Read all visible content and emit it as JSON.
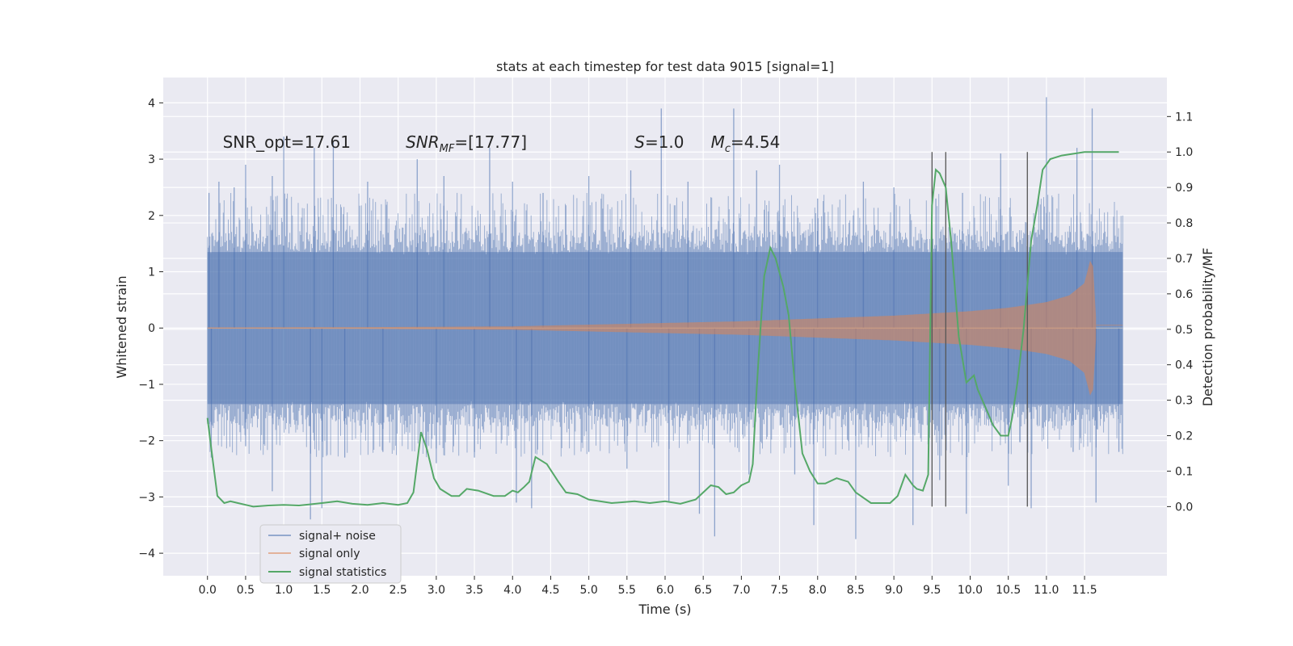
{
  "chart_data": {
    "type": "line",
    "title": "stats at each timestep for test data 9015 [signal=1]",
    "xlabel": "Time (s)",
    "ylabel_left": "Whitened strain",
    "ylabel_right": "Detection probability/MF",
    "xlim": [
      -0.58,
      12.58
    ],
    "ylim_left": [
      -4.4,
      4.45
    ],
    "ylim_right": [
      -0.195,
      1.21
    ],
    "x_ticks": [
      "0.0",
      "0.5",
      "1.0",
      "1.5",
      "2.0",
      "2.5",
      "3.0",
      "3.5",
      "4.0",
      "4.5",
      "5.0",
      "5.5",
      "6.0",
      "6.5",
      "7.0",
      "7.5",
      "8.0",
      "8.5",
      "9.0",
      "9.5",
      "10.0",
      "10.5",
      "11.0",
      "11.5"
    ],
    "y_ticks_left": [
      "4",
      "3",
      "2",
      "1",
      "0",
      "−1",
      "−2",
      "−3",
      "−4"
    ],
    "y_ticks_right": [
      "1.1",
      "1.0",
      "0.9",
      "0.8",
      "0.7",
      "0.6",
      "0.5",
      "0.4",
      "0.3",
      "0.2",
      "0.1",
      "0.0"
    ],
    "annotations": [
      {
        "text": "SNR_opt=17.61",
        "x": 0.2,
        "y": 3.3
      },
      {
        "text": "SNR",
        "sub": "MF",
        "rest": "=[17.77]",
        "x": 2.6,
        "y": 3.3
      },
      {
        "text": "S",
        "rest": "=1.0",
        "x": 5.6,
        "y": 3.3
      },
      {
        "text": "M",
        "sub": "c",
        "rest": "=4.54",
        "x": 6.6,
        "y": 3.3
      }
    ],
    "vlines": [
      9.5,
      9.68,
      10.75
    ],
    "vline_range": [
      0.0,
      1.0
    ],
    "series": [
      {
        "name": "signal+ noise",
        "color": "#4c72b0",
        "kind": "noise",
        "x_range": [
          0.0,
          12.0
        ],
        "band": 1.35,
        "peaks": [
          [
            0.02,
            2.4
          ],
          [
            0.15,
            2.6
          ],
          [
            0.35,
            2.5
          ],
          [
            0.5,
            2.9
          ],
          [
            0.85,
            2.7
          ],
          [
            1.0,
            3.4
          ],
          [
            1.4,
            3.2
          ],
          [
            1.65,
            3.3
          ],
          [
            2.1,
            2.6
          ],
          [
            2.75,
            3.0
          ],
          [
            3.1,
            2.7
          ],
          [
            3.7,
            3.2
          ],
          [
            4.0,
            2.6
          ],
          [
            4.4,
            2.4
          ],
          [
            5.0,
            2.7
          ],
          [
            5.55,
            2.8
          ],
          [
            5.95,
            3.9
          ],
          [
            6.3,
            2.6
          ],
          [
            6.9,
            3.9
          ],
          [
            7.2,
            2.8
          ],
          [
            7.5,
            2.9
          ],
          [
            8.0,
            2.3
          ],
          [
            8.6,
            2.6
          ],
          [
            9.0,
            2.5
          ],
          [
            9.55,
            2.3
          ],
          [
            9.9,
            2.4
          ],
          [
            10.4,
            3.1
          ],
          [
            11.0,
            4.1
          ],
          [
            11.4,
            3.2
          ],
          [
            11.6,
            3.9
          ]
        ],
        "troughs": [
          [
            0.05,
            -2.3
          ],
          [
            0.5,
            -2.1
          ],
          [
            0.85,
            -2.9
          ],
          [
            1.35,
            -3.4
          ],
          [
            1.5,
            -3.2
          ],
          [
            1.8,
            -2.3
          ],
          [
            2.3,
            -2.2
          ],
          [
            3.0,
            -2.4
          ],
          [
            3.5,
            -2.3
          ],
          [
            4.05,
            -3.1
          ],
          [
            4.25,
            -3.2
          ],
          [
            5.0,
            -2.2
          ],
          [
            5.5,
            -2.5
          ],
          [
            6.05,
            -3.1
          ],
          [
            6.45,
            -3.3
          ],
          [
            6.65,
            -3.7
          ],
          [
            7.1,
            -2.6
          ],
          [
            7.7,
            -2.6
          ],
          [
            7.95,
            -3.5
          ],
          [
            8.5,
            -3.75
          ],
          [
            9.25,
            -3.5
          ],
          [
            9.6,
            -2.7
          ],
          [
            9.95,
            -3.3
          ],
          [
            10.5,
            -2.8
          ],
          [
            10.8,
            -3.2
          ],
          [
            11.35,
            -2.2
          ],
          [
            11.65,
            -3.1
          ],
          [
            11.95,
            -2.2
          ]
        ]
      },
      {
        "name": "signal only",
        "color": "#dd8452",
        "kind": "chirp",
        "x_range": [
          0.0,
          11.65
        ],
        "envelope": [
          [
            0.0,
            0.01
          ],
          [
            2.0,
            0.015
          ],
          [
            4.0,
            0.03
          ],
          [
            5.0,
            0.06
          ],
          [
            6.0,
            0.09
          ],
          [
            7.0,
            0.12
          ],
          [
            8.0,
            0.17
          ],
          [
            9.0,
            0.22
          ],
          [
            10.0,
            0.3
          ],
          [
            10.5,
            0.36
          ],
          [
            11.0,
            0.46
          ],
          [
            11.3,
            0.58
          ],
          [
            11.5,
            0.8
          ],
          [
            11.6,
            1.35
          ],
          [
            11.65,
            0.2
          ],
          [
            11.7,
            0.02
          ],
          [
            12.0,
            0.02
          ]
        ]
      },
      {
        "name": "signal statistics",
        "color": "#55a868",
        "kind": "line",
        "axis": "right",
        "x": [
          0.0,
          0.07,
          0.13,
          0.22,
          0.3,
          0.4,
          0.5,
          0.6,
          0.8,
          1.0,
          1.2,
          1.5,
          1.7,
          1.9,
          2.1,
          2.3,
          2.5,
          2.62,
          2.7,
          2.8,
          2.88,
          2.97,
          3.05,
          3.2,
          3.3,
          3.4,
          3.55,
          3.75,
          3.9,
          4.0,
          4.07,
          4.15,
          4.22,
          4.3,
          4.45,
          4.6,
          4.7,
          4.85,
          5.0,
          5.3,
          5.6,
          5.8,
          6.0,
          6.2,
          6.4,
          6.6,
          6.7,
          6.8,
          6.9,
          7.0,
          7.1,
          7.15,
          7.2,
          7.25,
          7.3,
          7.38,
          7.45,
          7.55,
          7.62,
          7.7,
          7.8,
          7.9,
          8.0,
          8.1,
          8.25,
          8.4,
          8.5,
          8.7,
          8.95,
          9.05,
          9.15,
          9.25,
          9.3,
          9.38,
          9.45,
          9.5,
          9.55,
          9.6,
          9.68,
          9.75,
          9.85,
          9.95,
          10.05,
          10.1,
          10.2,
          10.3,
          10.4,
          10.5,
          10.55,
          10.62,
          10.7,
          10.8,
          10.88,
          10.95,
          11.05,
          11.2,
          11.5,
          11.95
        ],
        "y": [
          0.25,
          0.13,
          0.03,
          0.01,
          0.015,
          0.01,
          0.005,
          0.0,
          0.003,
          0.005,
          0.003,
          0.01,
          0.015,
          0.008,
          0.005,
          0.01,
          0.005,
          0.01,
          0.04,
          0.21,
          0.16,
          0.08,
          0.05,
          0.03,
          0.03,
          0.05,
          0.045,
          0.03,
          0.03,
          0.045,
          0.04,
          0.055,
          0.07,
          0.14,
          0.12,
          0.07,
          0.04,
          0.035,
          0.02,
          0.01,
          0.015,
          0.01,
          0.015,
          0.008,
          0.02,
          0.06,
          0.055,
          0.035,
          0.04,
          0.06,
          0.07,
          0.12,
          0.33,
          0.5,
          0.65,
          0.73,
          0.7,
          0.62,
          0.54,
          0.35,
          0.15,
          0.1,
          0.065,
          0.065,
          0.08,
          0.07,
          0.04,
          0.01,
          0.01,
          0.03,
          0.09,
          0.06,
          0.05,
          0.045,
          0.09,
          0.85,
          0.95,
          0.94,
          0.9,
          0.75,
          0.48,
          0.35,
          0.37,
          0.33,
          0.28,
          0.23,
          0.2,
          0.2,
          0.25,
          0.35,
          0.5,
          0.75,
          0.85,
          0.95,
          0.98,
          0.99,
          1.0,
          1.0
        ]
      }
    ],
    "legend": [
      "signal+ noise",
      "signal only",
      "signal statistics"
    ],
    "legend_position": "lower-left"
  }
}
